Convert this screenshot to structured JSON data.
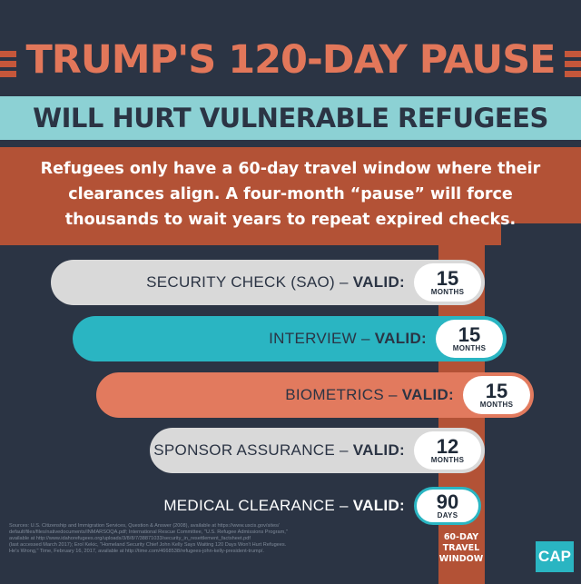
{
  "header": {
    "title": "TRUMP'S 120-DAY PAUSE",
    "subtitle": "WILL HURT VULNERABLE REFUGEES"
  },
  "description": {
    "line1": "Refugees only have a 60-day travel window where their",
    "line2": "clearances align. A four-month “pause” will force",
    "line3": "thousands to wait years to repeat expired checks."
  },
  "checks": [
    {
      "label": "SECURITY CHECK (SAO) – ",
      "valid": "VALID:",
      "value": "15",
      "unit": "MONTHS",
      "color": "#d9d9d9"
    },
    {
      "label": "INTERVIEW – ",
      "valid": "VALID:",
      "value": "15",
      "unit": "MONTHS",
      "color": "#2ab5c2"
    },
    {
      "label": "BIOMETRICS – ",
      "valid": "VALID:",
      "value": "15",
      "unit": "MONTHS",
      "color": "#e27a5e"
    },
    {
      "label": "SPONSOR ASSURANCE – ",
      "valid": "VALID:",
      "value": "12",
      "unit": "MONTHS",
      "color": "#d9d9d9"
    },
    {
      "label": "MEDICAL CLEARANCE – ",
      "valid": "VALID:",
      "value": "90",
      "unit": "DAYS",
      "color": "#2ab5c2"
    }
  ],
  "window": {
    "line1": "60-DAY",
    "line2": "TRAVEL",
    "line3": "WINDOW"
  },
  "sources": {
    "line1": "Sources: U.S. Citizenship and Immigration Services, Question & Answer (2008), available at https://www.uscis.gov/sites/",
    "line2": "default/files/files/nativedocuments/INMARSOQA.pdf; International Rescue Committee, \"U.S. Refugee Admissions Program,\"",
    "line3": "available at http://www.idahorefugees.org/uploads/3/8/8/7/38871033/security_in_resettlement_factsheet.pdf",
    "line4": "(last accessed March 2017); Erol Kekic, \"Homeland Security Chief John Kelly Says Waiting 120 Days Won't Hurt Refugees.",
    "line5": "He's Wrong,\" Time, February 16, 2017, available at http://time.com/4668538/refugees-john-kelly-president-trump/."
  },
  "logo": "CAP",
  "colors": {
    "background": "#2b3444",
    "orange": "#b35236",
    "salmon": "#e27a5e",
    "teal": "#2ab5c2",
    "light_teal": "#8cd1d4",
    "gray": "#d9d9d9"
  }
}
